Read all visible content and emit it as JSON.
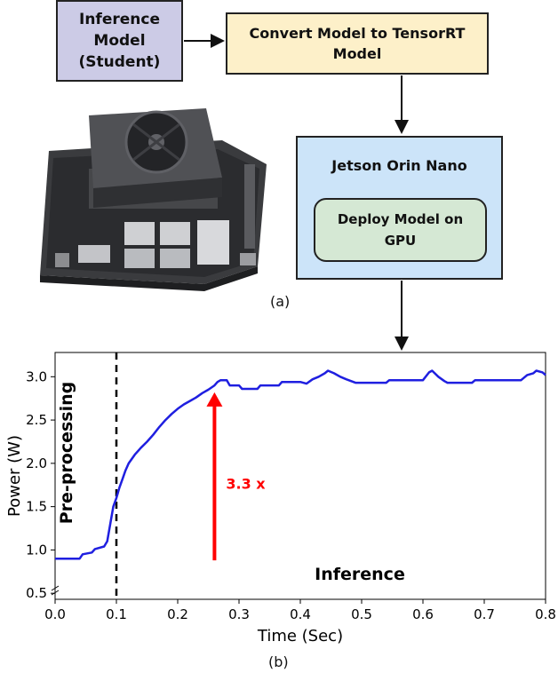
{
  "flow": {
    "inference_box": [
      "Inference",
      "Model",
      "(Student)"
    ],
    "convert_box": [
      "Convert Model to TensorRT",
      "Model"
    ],
    "jetson_title": "Jetson Orin Nano",
    "deploy_box": [
      "Deploy Model on",
      "GPU"
    ],
    "caption_a": "(a)"
  },
  "chart_caption": "(b)",
  "chart_data": {
    "type": "line",
    "xlabel": "Time (Sec)",
    "ylabel": "Power (W)",
    "xlim": [
      0.0,
      0.8
    ],
    "ylim": [
      0.43,
      3.28
    ],
    "xticks": [
      "0.0",
      "0.1",
      "0.2",
      "0.3",
      "0.4",
      "0.5",
      "0.6",
      "0.7",
      "0.8"
    ],
    "yticks": [
      "0.5",
      "1.0",
      "1.5",
      "2.0",
      "2.5",
      "3.0"
    ],
    "grid": false,
    "line_color": "#1f1fe0",
    "series": [
      {
        "values_xy": [
          [
            0.0,
            0.9
          ],
          [
            0.04,
            0.9
          ],
          [
            0.045,
            0.95
          ],
          [
            0.06,
            0.97
          ],
          [
            0.065,
            1.01
          ],
          [
            0.08,
            1.04
          ],
          [
            0.085,
            1.1
          ],
          [
            0.09,
            1.3
          ],
          [
            0.095,
            1.5
          ],
          [
            0.1,
            1.6
          ],
          [
            0.105,
            1.72
          ],
          [
            0.11,
            1.82
          ],
          [
            0.115,
            1.92
          ],
          [
            0.12,
            2.0
          ],
          [
            0.13,
            2.1
          ],
          [
            0.14,
            2.18
          ],
          [
            0.15,
            2.25
          ],
          [
            0.16,
            2.33
          ],
          [
            0.17,
            2.42
          ],
          [
            0.18,
            2.5
          ],
          [
            0.19,
            2.57
          ],
          [
            0.2,
            2.63
          ],
          [
            0.21,
            2.68
          ],
          [
            0.22,
            2.72
          ],
          [
            0.23,
            2.76
          ],
          [
            0.24,
            2.81
          ],
          [
            0.25,
            2.85
          ],
          [
            0.26,
            2.9
          ],
          [
            0.265,
            2.94
          ],
          [
            0.27,
            2.96
          ],
          [
            0.28,
            2.96
          ],
          [
            0.285,
            2.9
          ],
          [
            0.3,
            2.9
          ],
          [
            0.305,
            2.86
          ],
          [
            0.33,
            2.86
          ],
          [
            0.335,
            2.9
          ],
          [
            0.365,
            2.9
          ],
          [
            0.37,
            2.94
          ],
          [
            0.4,
            2.94
          ],
          [
            0.41,
            2.92
          ],
          [
            0.42,
            2.97
          ],
          [
            0.43,
            3.0
          ],
          [
            0.44,
            3.04
          ],
          [
            0.445,
            3.07
          ],
          [
            0.455,
            3.04
          ],
          [
            0.465,
            3.0
          ],
          [
            0.475,
            2.97
          ],
          [
            0.49,
            2.93
          ],
          [
            0.54,
            2.93
          ],
          [
            0.545,
            2.96
          ],
          [
            0.6,
            2.96
          ],
          [
            0.61,
            3.05
          ],
          [
            0.615,
            3.07
          ],
          [
            0.625,
            3.0
          ],
          [
            0.635,
            2.95
          ],
          [
            0.64,
            2.93
          ],
          [
            0.68,
            2.93
          ],
          [
            0.685,
            2.96
          ],
          [
            0.76,
            2.96
          ],
          [
            0.77,
            3.02
          ],
          [
            0.78,
            3.04
          ],
          [
            0.785,
            3.07
          ],
          [
            0.795,
            3.05
          ],
          [
            0.8,
            3.02
          ]
        ]
      }
    ],
    "annotations": {
      "preprocessing_label": "Pre-processing",
      "inference_label": "Inference",
      "speedup_label": "3.3 x",
      "speedup_color": "#ff0000",
      "divider_x": 0.1,
      "arrow_x": 0.26,
      "arrow_from_y": 0.88,
      "arrow_to_y": 2.82
    }
  }
}
